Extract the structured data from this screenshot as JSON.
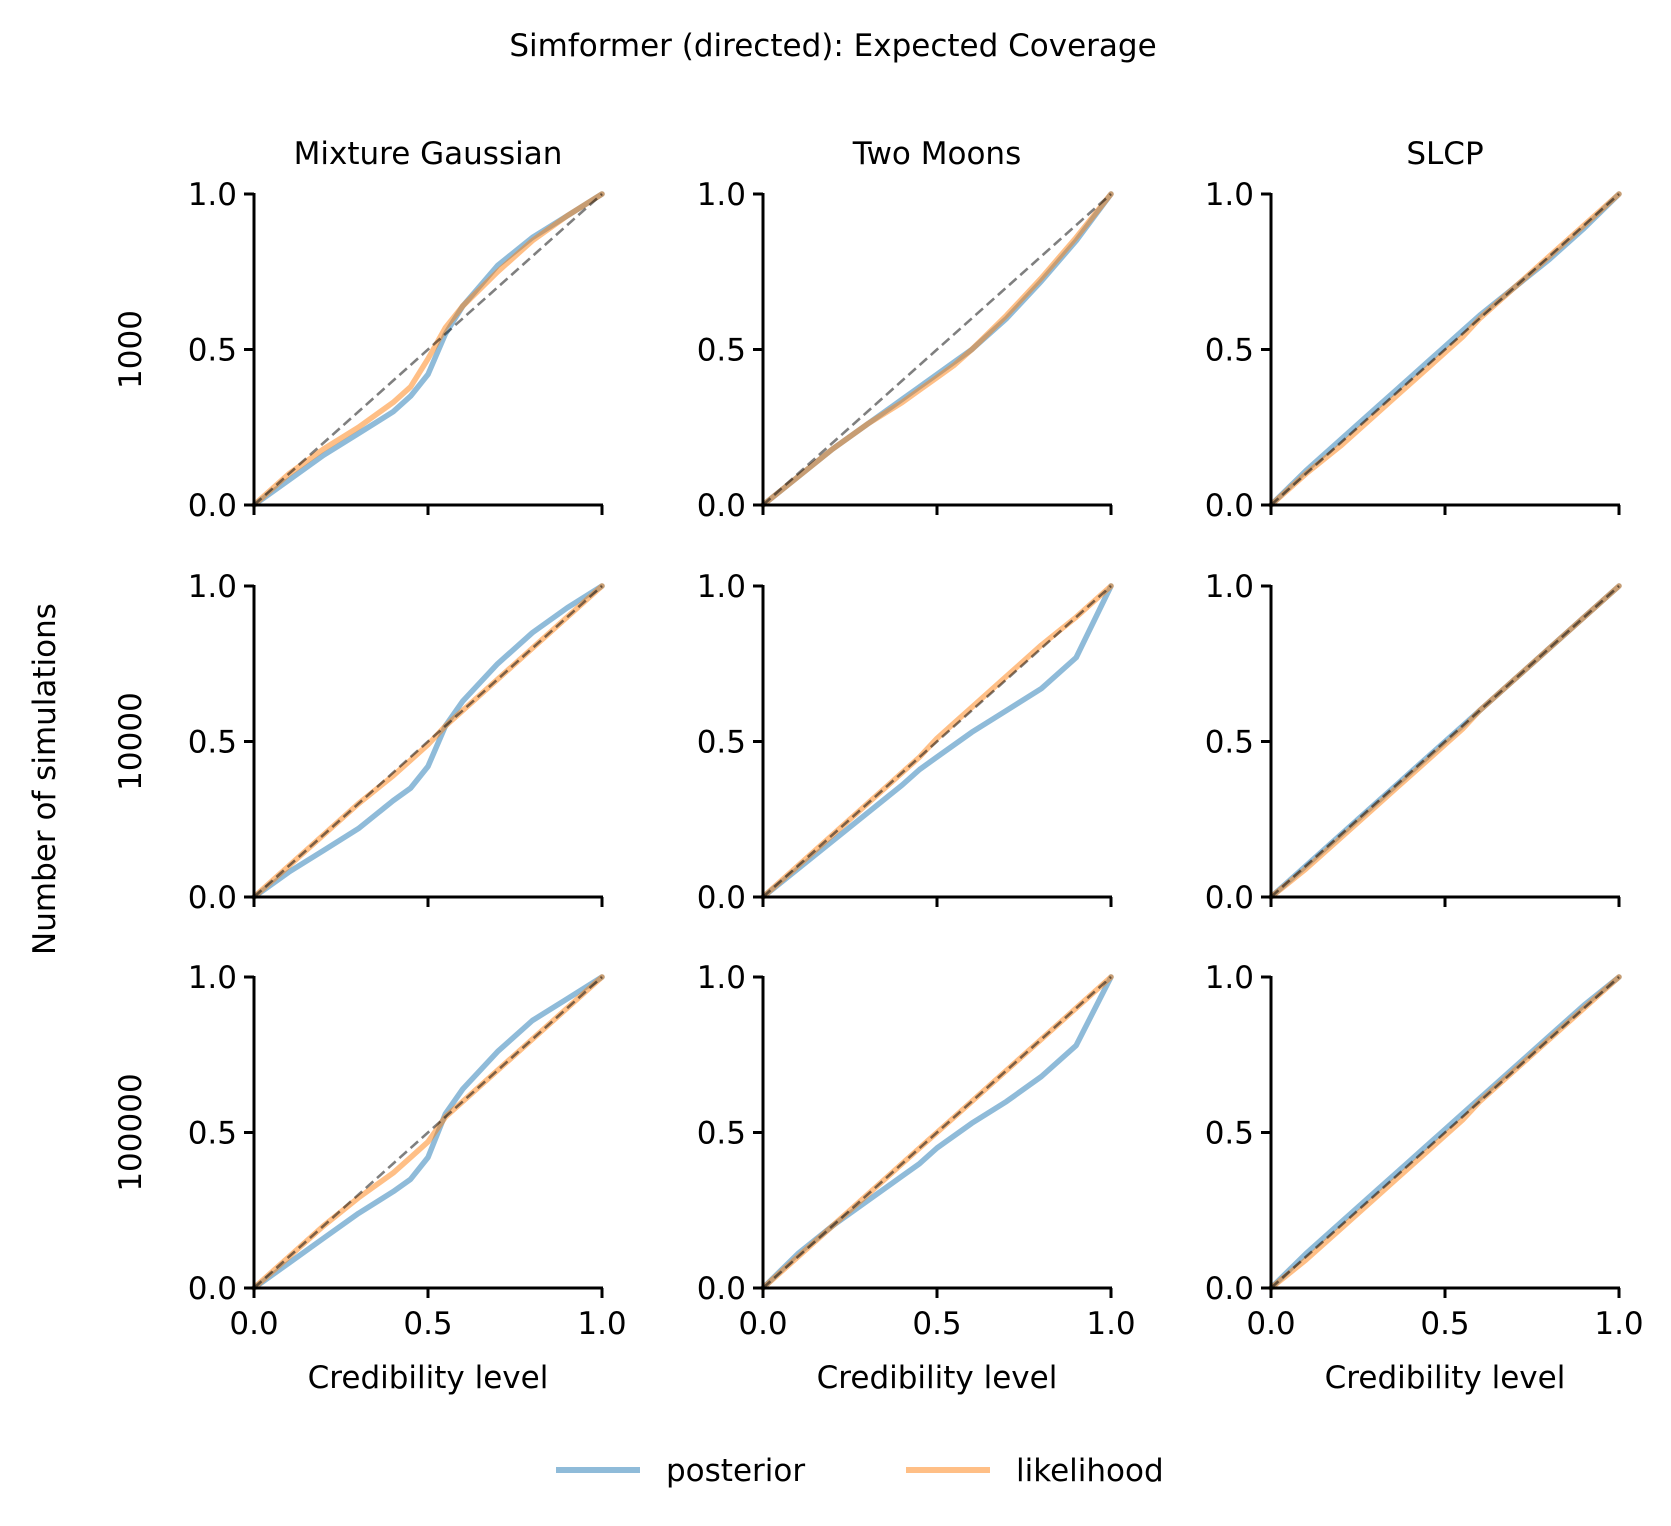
{
  "chart_data": {
    "type": "line",
    "title": "Simformer (directed): Expected Coverage",
    "xlabel": "Credibility level",
    "ylabel": "Number of simulations",
    "xlim": [
      0,
      1
    ],
    "ylim": [
      0,
      1
    ],
    "x_ticks": [
      "0.0",
      "0.5",
      "1.0"
    ],
    "y_ticks": [
      "0.0",
      "0.5",
      "1.0"
    ],
    "grid": false,
    "legend_position": "bottom-center",
    "columns": [
      "Mixture Gaussian",
      "Two Moons",
      "SLCP"
    ],
    "rows": [
      "1000",
      "10000",
      "100000"
    ],
    "legend": [
      {
        "name": "posterior",
        "color": "#1f77b4"
      },
      {
        "name": "likelihood",
        "color": "#ff7f0e"
      }
    ],
    "reference_line": {
      "style": "dashed",
      "color": "#000000",
      "values": [
        [
          0,
          0
        ],
        [
          1,
          1
        ]
      ]
    },
    "x": [
      0,
      0.1,
      0.2,
      0.3,
      0.4,
      0.45,
      0.5,
      0.55,
      0.6,
      0.7,
      0.8,
      0.9,
      1.0
    ],
    "panels": [
      {
        "row": "1000",
        "column": "Mixture Gaussian",
        "series": [
          {
            "name": "posterior",
            "values": [
              0,
              0.08,
              0.16,
              0.23,
              0.3,
              0.35,
              0.42,
              0.55,
              0.64,
              0.77,
              0.86,
              0.93,
              1.0
            ]
          },
          {
            "name": "likelihood",
            "values": [
              0,
              0.1,
              0.18,
              0.25,
              0.33,
              0.38,
              0.47,
              0.57,
              0.64,
              0.75,
              0.85,
              0.93,
              1.0
            ]
          }
        ]
      },
      {
        "row": "1000",
        "column": "Two Moons",
        "series": [
          {
            "name": "posterior",
            "values": [
              0,
              0.09,
              0.18,
              0.26,
              0.34,
              0.38,
              0.42,
              0.46,
              0.5,
              0.6,
              0.72,
              0.85,
              1.0
            ]
          },
          {
            "name": "likelihood",
            "values": [
              0,
              0.09,
              0.18,
              0.26,
              0.33,
              0.37,
              0.41,
              0.45,
              0.5,
              0.61,
              0.73,
              0.86,
              1.0
            ]
          }
        ]
      },
      {
        "row": "1000",
        "column": "SLCP",
        "series": [
          {
            "name": "posterior",
            "values": [
              0,
              0.11,
              0.21,
              0.31,
              0.41,
              0.46,
              0.51,
              0.56,
              0.61,
              0.7,
              0.79,
              0.89,
              1.0
            ]
          },
          {
            "name": "likelihood",
            "values": [
              0,
              0.1,
              0.19,
              0.29,
              0.39,
              0.44,
              0.49,
              0.54,
              0.6,
              0.7,
              0.8,
              0.9,
              1.0
            ]
          }
        ]
      },
      {
        "row": "10000",
        "column": "Mixture Gaussian",
        "series": [
          {
            "name": "posterior",
            "values": [
              0,
              0.08,
              0.15,
              0.22,
              0.31,
              0.35,
              0.42,
              0.55,
              0.63,
              0.75,
              0.85,
              0.93,
              1.0
            ]
          },
          {
            "name": "likelihood",
            "values": [
              0,
              0.1,
              0.2,
              0.3,
              0.39,
              0.44,
              0.49,
              0.55,
              0.6,
              0.7,
              0.8,
              0.9,
              1.0
            ]
          }
        ]
      },
      {
        "row": "10000",
        "column": "Two Moons",
        "series": [
          {
            "name": "posterior",
            "values": [
              0,
              0.09,
              0.18,
              0.27,
              0.36,
              0.41,
              0.45,
              0.49,
              0.53,
              0.6,
              0.67,
              0.77,
              1.0
            ]
          },
          {
            "name": "likelihood",
            "values": [
              0,
              0.1,
              0.2,
              0.3,
              0.4,
              0.45,
              0.51,
              0.56,
              0.61,
              0.71,
              0.81,
              0.9,
              1.0
            ]
          }
        ]
      },
      {
        "row": "10000",
        "column": "SLCP",
        "series": [
          {
            "name": "posterior",
            "values": [
              0,
              0.1,
              0.2,
              0.3,
              0.4,
              0.45,
              0.5,
              0.55,
              0.6,
              0.7,
              0.8,
              0.9,
              1.0
            ]
          },
          {
            "name": "likelihood",
            "values": [
              0,
              0.09,
              0.19,
              0.29,
              0.39,
              0.44,
              0.49,
              0.54,
              0.6,
              0.7,
              0.8,
              0.9,
              1.0
            ]
          }
        ]
      },
      {
        "row": "100000",
        "column": "Mixture Gaussian",
        "series": [
          {
            "name": "posterior",
            "values": [
              0,
              0.08,
              0.16,
              0.24,
              0.31,
              0.35,
              0.42,
              0.56,
              0.64,
              0.76,
              0.86,
              0.93,
              1.0
            ]
          },
          {
            "name": "likelihood",
            "values": [
              0,
              0.1,
              0.2,
              0.29,
              0.37,
              0.42,
              0.47,
              0.55,
              0.6,
              0.7,
              0.8,
              0.9,
              1.0
            ]
          }
        ]
      },
      {
        "row": "100000",
        "column": "Two Moons",
        "series": [
          {
            "name": "posterior",
            "values": [
              0,
              0.11,
              0.2,
              0.28,
              0.36,
              0.4,
              0.45,
              0.49,
              0.53,
              0.6,
              0.68,
              0.78,
              1.0
            ]
          },
          {
            "name": "likelihood",
            "values": [
              0,
              0.1,
              0.2,
              0.3,
              0.4,
              0.45,
              0.5,
              0.55,
              0.6,
              0.7,
              0.8,
              0.9,
              1.0
            ]
          }
        ]
      },
      {
        "row": "100000",
        "column": "SLCP",
        "series": [
          {
            "name": "posterior",
            "values": [
              0,
              0.11,
              0.21,
              0.31,
              0.41,
              0.46,
              0.51,
              0.56,
              0.61,
              0.71,
              0.81,
              0.91,
              1.0
            ]
          },
          {
            "name": "likelihood",
            "values": [
              0,
              0.09,
              0.19,
              0.29,
              0.39,
              0.44,
              0.49,
              0.54,
              0.6,
              0.7,
              0.8,
              0.9,
              1.0
            ]
          }
        ]
      }
    ]
  }
}
